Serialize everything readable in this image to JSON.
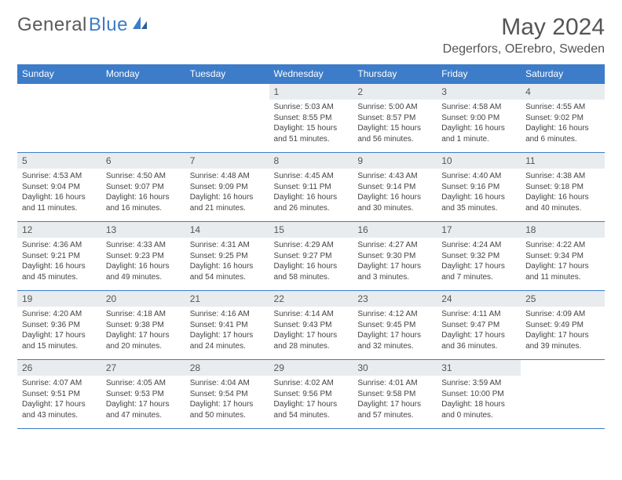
{
  "logo": {
    "text1": "General",
    "text2": "Blue"
  },
  "title": "May 2024",
  "location": "Degerfors, OErebro, Sweden",
  "colors": {
    "accent": "#3d7cc9",
    "header_bg": "#3d7cc9",
    "daynum_bg": "#e9ecef",
    "text": "#444444"
  },
  "weekdays": [
    "Sunday",
    "Monday",
    "Tuesday",
    "Wednesday",
    "Thursday",
    "Friday",
    "Saturday"
  ],
  "weeks": [
    [
      null,
      null,
      null,
      {
        "n": "1",
        "sr": "Sunrise: 5:03 AM",
        "ss": "Sunset: 8:55 PM",
        "dl": "Daylight: 15 hours and 51 minutes."
      },
      {
        "n": "2",
        "sr": "Sunrise: 5:00 AM",
        "ss": "Sunset: 8:57 PM",
        "dl": "Daylight: 15 hours and 56 minutes."
      },
      {
        "n": "3",
        "sr": "Sunrise: 4:58 AM",
        "ss": "Sunset: 9:00 PM",
        "dl": "Daylight: 16 hours and 1 minute."
      },
      {
        "n": "4",
        "sr": "Sunrise: 4:55 AM",
        "ss": "Sunset: 9:02 PM",
        "dl": "Daylight: 16 hours and 6 minutes."
      }
    ],
    [
      {
        "n": "5",
        "sr": "Sunrise: 4:53 AM",
        "ss": "Sunset: 9:04 PM",
        "dl": "Daylight: 16 hours and 11 minutes."
      },
      {
        "n": "6",
        "sr": "Sunrise: 4:50 AM",
        "ss": "Sunset: 9:07 PM",
        "dl": "Daylight: 16 hours and 16 minutes."
      },
      {
        "n": "7",
        "sr": "Sunrise: 4:48 AM",
        "ss": "Sunset: 9:09 PM",
        "dl": "Daylight: 16 hours and 21 minutes."
      },
      {
        "n": "8",
        "sr": "Sunrise: 4:45 AM",
        "ss": "Sunset: 9:11 PM",
        "dl": "Daylight: 16 hours and 26 minutes."
      },
      {
        "n": "9",
        "sr": "Sunrise: 4:43 AM",
        "ss": "Sunset: 9:14 PM",
        "dl": "Daylight: 16 hours and 30 minutes."
      },
      {
        "n": "10",
        "sr": "Sunrise: 4:40 AM",
        "ss": "Sunset: 9:16 PM",
        "dl": "Daylight: 16 hours and 35 minutes."
      },
      {
        "n": "11",
        "sr": "Sunrise: 4:38 AM",
        "ss": "Sunset: 9:18 PM",
        "dl": "Daylight: 16 hours and 40 minutes."
      }
    ],
    [
      {
        "n": "12",
        "sr": "Sunrise: 4:36 AM",
        "ss": "Sunset: 9:21 PM",
        "dl": "Daylight: 16 hours and 45 minutes."
      },
      {
        "n": "13",
        "sr": "Sunrise: 4:33 AM",
        "ss": "Sunset: 9:23 PM",
        "dl": "Daylight: 16 hours and 49 minutes."
      },
      {
        "n": "14",
        "sr": "Sunrise: 4:31 AM",
        "ss": "Sunset: 9:25 PM",
        "dl": "Daylight: 16 hours and 54 minutes."
      },
      {
        "n": "15",
        "sr": "Sunrise: 4:29 AM",
        "ss": "Sunset: 9:27 PM",
        "dl": "Daylight: 16 hours and 58 minutes."
      },
      {
        "n": "16",
        "sr": "Sunrise: 4:27 AM",
        "ss": "Sunset: 9:30 PM",
        "dl": "Daylight: 17 hours and 3 minutes."
      },
      {
        "n": "17",
        "sr": "Sunrise: 4:24 AM",
        "ss": "Sunset: 9:32 PM",
        "dl": "Daylight: 17 hours and 7 minutes."
      },
      {
        "n": "18",
        "sr": "Sunrise: 4:22 AM",
        "ss": "Sunset: 9:34 PM",
        "dl": "Daylight: 17 hours and 11 minutes."
      }
    ],
    [
      {
        "n": "19",
        "sr": "Sunrise: 4:20 AM",
        "ss": "Sunset: 9:36 PM",
        "dl": "Daylight: 17 hours and 15 minutes."
      },
      {
        "n": "20",
        "sr": "Sunrise: 4:18 AM",
        "ss": "Sunset: 9:38 PM",
        "dl": "Daylight: 17 hours and 20 minutes."
      },
      {
        "n": "21",
        "sr": "Sunrise: 4:16 AM",
        "ss": "Sunset: 9:41 PM",
        "dl": "Daylight: 17 hours and 24 minutes."
      },
      {
        "n": "22",
        "sr": "Sunrise: 4:14 AM",
        "ss": "Sunset: 9:43 PM",
        "dl": "Daylight: 17 hours and 28 minutes."
      },
      {
        "n": "23",
        "sr": "Sunrise: 4:12 AM",
        "ss": "Sunset: 9:45 PM",
        "dl": "Daylight: 17 hours and 32 minutes."
      },
      {
        "n": "24",
        "sr": "Sunrise: 4:11 AM",
        "ss": "Sunset: 9:47 PM",
        "dl": "Daylight: 17 hours and 36 minutes."
      },
      {
        "n": "25",
        "sr": "Sunrise: 4:09 AM",
        "ss": "Sunset: 9:49 PM",
        "dl": "Daylight: 17 hours and 39 minutes."
      }
    ],
    [
      {
        "n": "26",
        "sr": "Sunrise: 4:07 AM",
        "ss": "Sunset: 9:51 PM",
        "dl": "Daylight: 17 hours and 43 minutes."
      },
      {
        "n": "27",
        "sr": "Sunrise: 4:05 AM",
        "ss": "Sunset: 9:53 PM",
        "dl": "Daylight: 17 hours and 47 minutes."
      },
      {
        "n": "28",
        "sr": "Sunrise: 4:04 AM",
        "ss": "Sunset: 9:54 PM",
        "dl": "Daylight: 17 hours and 50 minutes."
      },
      {
        "n": "29",
        "sr": "Sunrise: 4:02 AM",
        "ss": "Sunset: 9:56 PM",
        "dl": "Daylight: 17 hours and 54 minutes."
      },
      {
        "n": "30",
        "sr": "Sunrise: 4:01 AM",
        "ss": "Sunset: 9:58 PM",
        "dl": "Daylight: 17 hours and 57 minutes."
      },
      {
        "n": "31",
        "sr": "Sunrise: 3:59 AM",
        "ss": "Sunset: 10:00 PM",
        "dl": "Daylight: 18 hours and 0 minutes."
      },
      null
    ]
  ]
}
